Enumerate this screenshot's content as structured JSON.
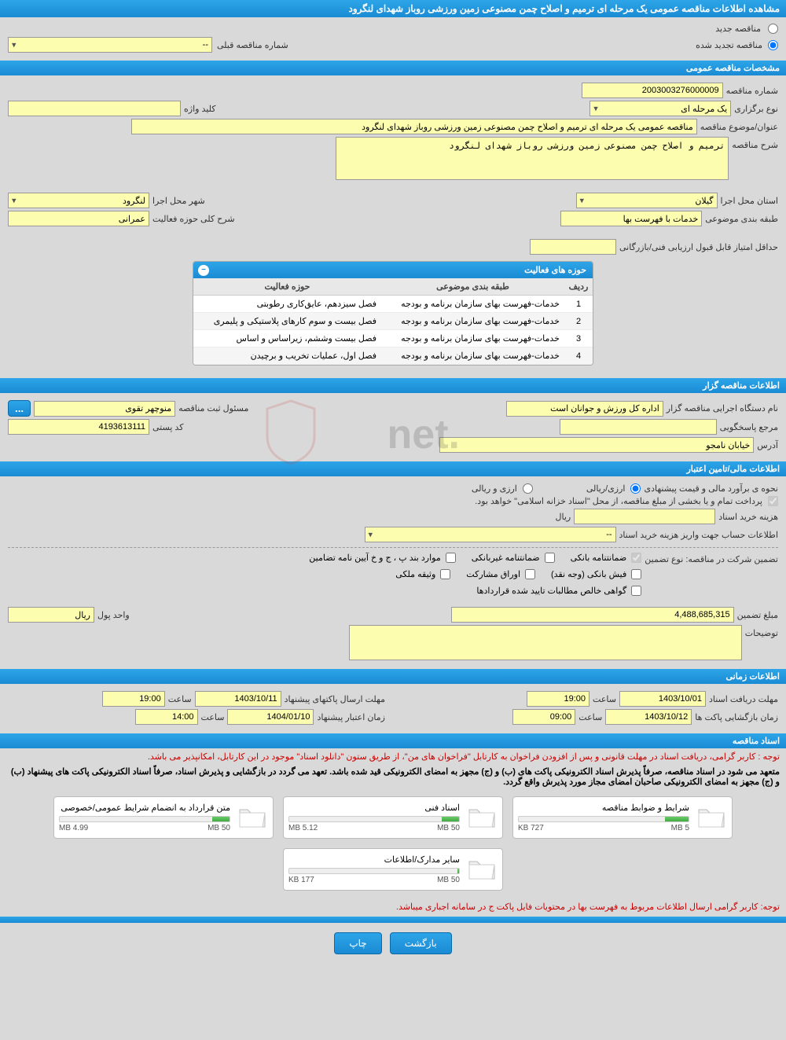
{
  "colors": {
    "header_bg": "#1a8bd4",
    "field_bg": "#fdfdb0",
    "warn": "#c00"
  },
  "header": {
    "title": "مشاهده اطلاعات مناقصه عمومی یک مرحله ای ترمیم و اصلاح چمن مصنوعی زمین ورزشی روباز شهدای لنگرود"
  },
  "radios": {
    "new": "مناقصه جدید",
    "renewed": "مناقصه تجدید شده"
  },
  "prev_tender": {
    "label": "شماره مناقصه قبلی",
    "value": "--"
  },
  "sec1": {
    "title": "مشخصات مناقصه عمومی"
  },
  "f": {
    "tender_no_label": "شماره مناقصه",
    "tender_no": "2003003276000009",
    "type_label": "نوع برگزاری",
    "type": "یک مرحله ای",
    "keyword_label": "کلید واژه",
    "keyword": "",
    "subject_label": "عنوان/موضوع مناقصه",
    "subject": "مناقصه عمومی یک مرحله ای ترمیم و اصلاح چمن مصنوعی زمین ورزشی روباز شهدای لنگرود",
    "desc_label": "شرح مناقصه",
    "desc": "ترمیم و اصلاح چمن مصنوعی زمین ورزشی روباز شهدای لنگرود",
    "province_label": "استان محل اجرا",
    "province": "گیلان",
    "city_label": "شهر محل اجرا",
    "city": "لنگرود",
    "class_label": "طبقه بندی موضوعی",
    "class": "خدمات با فهرست بها",
    "field_desc_label": "شرح کلی حوزه فعالیت",
    "field_desc": "عمرانی",
    "min_score_label": "حداقل امتیاز قابل قبول ارزیابی فنی/بازرگانی",
    "min_score": ""
  },
  "act_table": {
    "title": "حوزه های فعالیت",
    "cols": {
      "row": "ردیف",
      "class": "طبقه بندی موضوعی",
      "field": "حوزه فعالیت"
    },
    "rows": [
      {
        "n": "1",
        "c": "خدمات-فهرست بهای سازمان برنامه و بودجه",
        "f": "فصل سیزدهم، عایق‌کاری رطوبتی"
      },
      {
        "n": "2",
        "c": "خدمات-فهرست بهای سازمان برنامه و بودجه",
        "f": "فصل بیست و سوم کارهای پلاستیکی و پلیمری"
      },
      {
        "n": "3",
        "c": "خدمات-فهرست بهای سازمان برنامه و بودجه",
        "f": "فصل بیست وششم، زیراساس و اساس"
      },
      {
        "n": "4",
        "c": "خدمات-فهرست بهای سازمان برنامه و بودجه",
        "f": "فصل اول، عملیات تخریب و برچیدن"
      }
    ]
  },
  "sec2": {
    "title": "اطلاعات مناقصه گزار"
  },
  "org": {
    "name_label": "نام دستگاه اجرایی مناقصه گزار",
    "name": "اداره کل ورزش و جوانان است",
    "reg_label": "مسئول ثبت مناقصه",
    "reg": "منوچهر تقوی",
    "ell": "...",
    "resp_label": "مرجع پاسخگویی",
    "resp": "",
    "post_label": "کد پستی",
    "post": "4193613111",
    "addr_label": "آدرس",
    "addr": "خیابان نامجو"
  },
  "sec3": {
    "title": "اطلاعات مالی/تامین اعتبار"
  },
  "fin": {
    "est_label": "نحوه ی برآورد مالی و قیمت پیشنهادی",
    "r1": "ارزی/ریالی",
    "r2": "ارزی و ریالی",
    "pay_note": "پرداخت تمام و یا بخشی از مبلغ مناقصه، از محل \"اسناد خزانه اسلامی\" خواهد بود.",
    "doc_cost_label": "هزینه خرید اسناد",
    "doc_cost": "",
    "unit": "ریال",
    "acc_label": "اطلاعات حساب جهت واریز هزینه خرید اسناد",
    "acc": "--",
    "guar_label": "تضمین شرکت در مناقصه:   نوع تضمین",
    "g1": "ضمانتنامه بانکی",
    "g2": "ضمانتنامه غیربانکی",
    "g3": "موارد بند پ ، ج و خ آیین نامه تضامین",
    "g4": "فیش بانکی (وجه نقد)",
    "g5": "اوراق مشارکت",
    "g6": "وثیقه ملکی",
    "g7": "گواهی خالص مطالبات تایید شده قراردادها",
    "amount_label": "مبلغ تضمین",
    "amount": "4,488,685,315",
    "unit2_label": "واحد پول",
    "unit2": "ریال",
    "notes_label": "توضیحات",
    "notes": ""
  },
  "sec4": {
    "title": "اطلاعات زمانی"
  },
  "time": {
    "recv_label": "مهلت دریافت اسناد",
    "recv_date": "1403/10/01",
    "recv_time": "19:00",
    "send_label": "مهلت ارسال پاکتهای پیشنهاد",
    "send_date": "1403/10/11",
    "send_time": "19:00",
    "open_label": "زمان بازگشایی پاکت ها",
    "open_date": "1403/10/12",
    "open_time": "09:00",
    "valid_label": "زمان اعتبار پیشنهاد",
    "valid_date": "1404/01/10",
    "valid_time": "14:00",
    "hour": "ساعت"
  },
  "sec5": {
    "title": "اسناد مناقصه"
  },
  "docs": {
    "warn1": "توجه : کاربر گرامی، دریافت اسناد در مهلت قانونی و پس از افزودن فراخوان به کارتابل \"فراخوان های من\"، از طریق ستون \"دانلود اسناد\" موجود در این کارتابل، امکانپذیر می باشد.",
    "warn2": "متعهد می شود در اسناد مناقصه، صرفاً پذیرش اسناد الکترونیکی پاکت های (ب) و (ج) مجهز به امضای الکترونیکی قید شده باشد. تعهد می گردد در بازگشایی و پذیرش اسناد، صرفاً اسناد الکترونیکی پاکت های پیشنهاد (ب) و (ج) مجهز به امضای الکترونیکی صاحبان امضای مجاز مورد پذیرش واقع گردد.",
    "items": [
      {
        "title": "شرایط و ضوابط مناقصه",
        "used": "727 KB",
        "total": "5 MB",
        "pct": 14
      },
      {
        "title": "اسناد فنی",
        "used": "5.12 MB",
        "total": "50 MB",
        "pct": 10
      },
      {
        "title": "متن قرارداد به انضمام شرایط عمومی/خصوصی",
        "used": "4.99 MB",
        "total": "50 MB",
        "pct": 10
      },
      {
        "title": "سایر مدارک/اطلاعات",
        "used": "177 KB",
        "total": "50 MB",
        "pct": 1
      }
    ],
    "warn3": "توجه: کاربر گرامی ارسال اطلاعات مربوط به فهرست بها در محتویات فایل پاکت ج در سامانه اجباری میباشد."
  },
  "btns": {
    "back": "بازگشت",
    "print": "چاپ"
  },
  "watermark": "AriaTender.net"
}
